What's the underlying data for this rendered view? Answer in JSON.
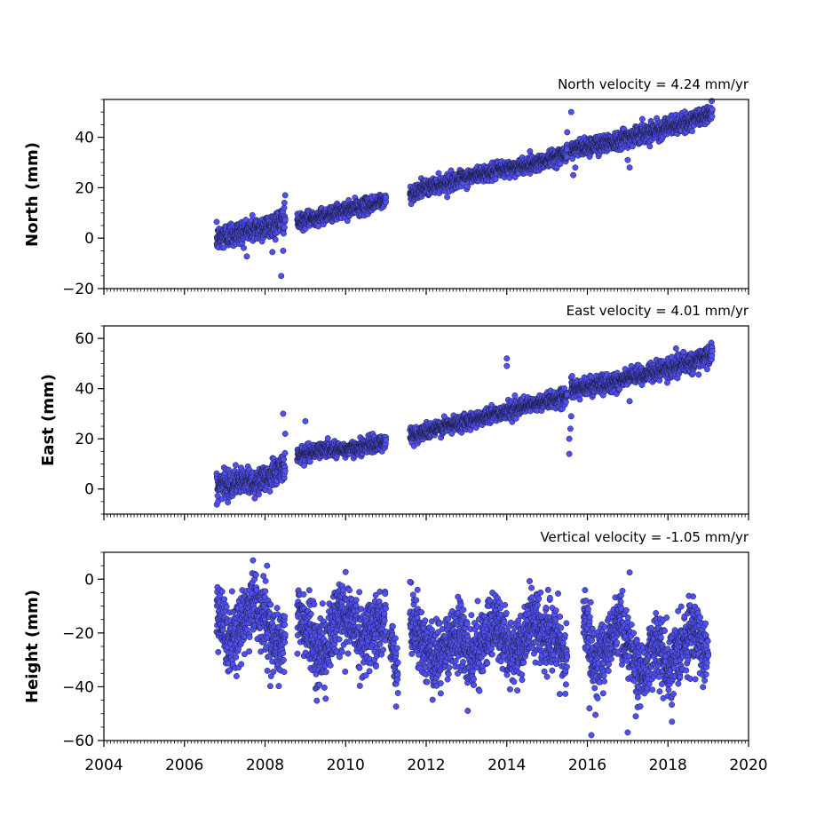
{
  "chart_data": [
    {
      "type": "scatter",
      "id": "north",
      "title": "North velocity = 4.24 mm/yr",
      "ylabel": "North (mm)",
      "xlim": [
        2004,
        2020
      ],
      "ylim": [
        -20,
        55
      ],
      "yticks": [
        -20,
        0,
        20,
        40
      ],
      "ytick_labels": [
        "−20",
        "0",
        "20",
        "40"
      ],
      "segments": [
        {
          "x": [
            2006.8,
            2007.0,
            2007.3,
            2007.6,
            2007.9,
            2008.2,
            2008.5
          ],
          "y": [
            -0.5,
            1,
            2,
            3,
            4,
            5,
            8
          ],
          "scatter": 2.5
        },
        {
          "x": [
            2008.8,
            2009.2,
            2009.6,
            2010.0,
            2010.4,
            2010.8,
            2011.0
          ],
          "y": [
            6,
            8,
            9.5,
            11,
            12.5,
            14,
            15
          ],
          "scatter": 1.5
        },
        {
          "x": [
            2011.6,
            2012.0,
            2012.5,
            2013.0,
            2013.5,
            2014.0,
            2014.5,
            2015.0,
            2015.5
          ],
          "y": [
            17.5,
            20,
            22,
            24,
            26,
            27.5,
            29,
            31,
            34
          ],
          "scatter": 1.5
        },
        {
          "x": [
            2015.6,
            2016.0,
            2016.5,
            2017.0,
            2017.5,
            2018.0,
            2018.5,
            2019.1
          ],
          "y": [
            35,
            36.5,
            38,
            40,
            42,
            44,
            46,
            50
          ],
          "scatter": 1.8
        }
      ],
      "outliers": [
        {
          "x": 2008.4,
          "y": -15
        },
        {
          "x": 2008.45,
          "y": -5
        },
        {
          "x": 2008.5,
          "y": 17
        },
        {
          "x": 2008.48,
          "y": 14
        },
        {
          "x": 2015.6,
          "y": 50
        },
        {
          "x": 2015.5,
          "y": 42
        },
        {
          "x": 2015.65,
          "y": 25
        },
        {
          "x": 2015.7,
          "y": 28
        },
        {
          "x": 2017.05,
          "y": 28
        },
        {
          "x": 2017.0,
          "y": 31
        }
      ]
    },
    {
      "type": "scatter",
      "id": "east",
      "title": "East velocity = 4.01 mm/yr",
      "ylabel": "East (mm)",
      "xlim": [
        2004,
        2020
      ],
      "ylim": [
        -10,
        65
      ],
      "yticks": [
        0,
        20,
        40,
        60
      ],
      "ytick_labels": [
        "0",
        "20",
        "40",
        "60"
      ],
      "segments": [
        {
          "x": [
            2006.8,
            2007.0,
            2007.4,
            2007.8,
            2008.1,
            2008.5
          ],
          "y": [
            1,
            2,
            2.5,
            3,
            5,
            9
          ],
          "scatter": 2.5
        },
        {
          "x": [
            2008.8,
            2009.2,
            2009.6,
            2010.0,
            2010.4,
            2010.8,
            2011.0
          ],
          "y": [
            13,
            15,
            16,
            15.5,
            17,
            18,
            19
          ],
          "scatter": 1.5
        },
        {
          "x": [
            2011.6,
            2012.0,
            2012.5,
            2013.0,
            2013.5,
            2014.0,
            2014.5,
            2015.0,
            2015.5
          ],
          "y": [
            21,
            23,
            25,
            27,
            29,
            31,
            33,
            35,
            37
          ],
          "scatter": 1.5
        },
        {
          "x": [
            2015.6,
            2016.0,
            2016.5,
            2017.0,
            2017.5,
            2018.0,
            2018.5,
            2019.1
          ],
          "y": [
            39,
            41,
            42,
            44,
            46,
            48,
            50,
            54
          ],
          "scatter": 1.8
        }
      ],
      "outliers": [
        {
          "x": 2008.45,
          "y": 30
        },
        {
          "x": 2008.5,
          "y": 22
        },
        {
          "x": 2009.0,
          "y": 27
        },
        {
          "x": 2014.0,
          "y": 52
        },
        {
          "x": 2014.0,
          "y": 49
        },
        {
          "x": 2015.55,
          "y": 14
        },
        {
          "x": 2015.55,
          "y": 20
        },
        {
          "x": 2015.58,
          "y": 24
        },
        {
          "x": 2015.6,
          "y": 29
        },
        {
          "x": 2015.62,
          "y": 45
        },
        {
          "x": 2017.05,
          "y": 35
        },
        {
          "x": 2018.2,
          "y": 56
        }
      ]
    },
    {
      "type": "scatter",
      "id": "height",
      "title": "Vertical velocity = -1.05 mm/yr",
      "ylabel": "Height (mm)",
      "xlim": [
        2004,
        2020
      ],
      "xticks": [
        2004,
        2006,
        2008,
        2010,
        2012,
        2014,
        2016,
        2018,
        2020
      ],
      "xtick_labels": [
        "2004",
        "2006",
        "2008",
        "2010",
        "2012",
        "2014",
        "2016",
        "2018",
        "2020"
      ],
      "ylim": [
        -60,
        10
      ],
      "yticks": [
        -60,
        -40,
        -20,
        0
      ],
      "ytick_labels": [
        "−60",
        "−40",
        "−20",
        "0"
      ],
      "segments": [
        {
          "x": [
            2006.8,
            2007.1,
            2007.4,
            2007.7,
            2008.0,
            2008.3,
            2008.5
          ],
          "y": [
            -12,
            -24,
            -18,
            -8,
            -14,
            -26,
            -20
          ],
          "scatter": 6
        },
        {
          "x": [
            2008.8,
            2009.2,
            2009.5,
            2009.8,
            2010.1,
            2010.4,
            2010.7,
            2011.0
          ],
          "y": [
            -12,
            -24,
            -28,
            -12,
            -14,
            -22,
            -18,
            -16
          ],
          "scatter": 6
        },
        {
          "x": [
            2011.1,
            2011.3
          ],
          "y": [
            -22,
            -34
          ],
          "scatter": 5
        },
        {
          "x": [
            2011.6,
            2011.9,
            2012.2,
            2012.5,
            2012.8,
            2013.1,
            2013.4,
            2013.7,
            2014.0,
            2014.3,
            2014.6,
            2014.9,
            2015.2,
            2015.5
          ],
          "y": [
            -16,
            -22,
            -30,
            -26,
            -18,
            -30,
            -24,
            -16,
            -24,
            -28,
            -16,
            -20,
            -24,
            -28
          ],
          "scatter": 6
        },
        {
          "x": [
            2015.9,
            2016.2,
            2016.5,
            2016.8,
            2017.1,
            2017.4,
            2017.7,
            2018.0,
            2018.3,
            2018.6,
            2019.0
          ],
          "y": [
            -14,
            -32,
            -24,
            -16,
            -28,
            -36,
            -22,
            -34,
            -26,
            -18,
            -26
          ],
          "scatter": 6
        }
      ],
      "outliers": [
        {
          "x": 2007.7,
          "y": 7
        },
        {
          "x": 2008.05,
          "y": 5
        },
        {
          "x": 2011.6,
          "y": -1
        },
        {
          "x": 2016.1,
          "y": -58
        },
        {
          "x": 2016.05,
          "y": -48
        },
        {
          "x": 2017.0,
          "y": -57
        },
        {
          "x": 2017.05,
          "y": 2.5
        },
        {
          "x": 2017.2,
          "y": -51
        },
        {
          "x": 2018.1,
          "y": -53
        }
      ]
    }
  ],
  "colors": {
    "marker_fill": "#5050f0",
    "marker_edge": "#1a1a3a",
    "axes": "#000000"
  }
}
